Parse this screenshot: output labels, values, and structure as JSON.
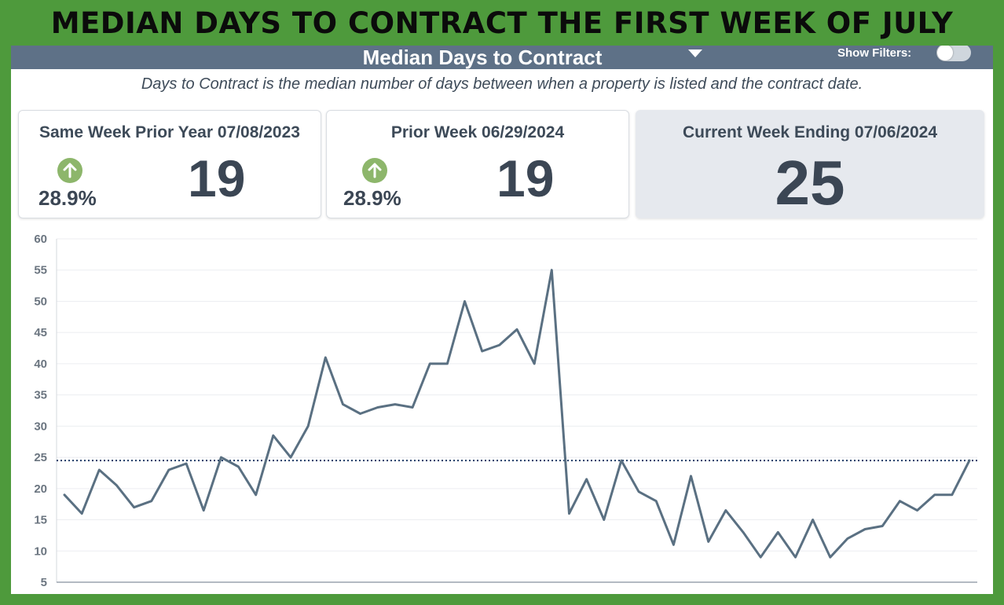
{
  "banner": {
    "title": "MEDIAN DAYS TO CONTRACT THE FIRST WEEK OF JULY"
  },
  "header": {
    "title": "Median Days to Contract",
    "filters_label": "Show Filters:",
    "filters_on": false
  },
  "subtitle": "Days to Contract is the median number of days between when a property is listed and the contract date.",
  "cards": {
    "prior_year": {
      "label": "Same Week Prior Year 07/08/2023",
      "value": "19",
      "change": "28.9%"
    },
    "prior_week": {
      "label": "Prior Week 06/29/2024",
      "value": "19",
      "change": "28.9%"
    },
    "current": {
      "label": "Current Week Ending 07/06/2024",
      "value": "25"
    }
  },
  "colors": {
    "header": "#5e7187",
    "line": "#5a7082",
    "reference": "#1f3a66",
    "up_icon": "#8db66b",
    "banner_bg": "#4e9a3c"
  },
  "chart_data": {
    "type": "line",
    "title": "",
    "xlabel": "",
    "ylabel": "",
    "ylim": [
      5,
      60
    ],
    "yticks": [
      5,
      10,
      15,
      20,
      25,
      30,
      35,
      40,
      45,
      50,
      55,
      60
    ],
    "grid": true,
    "reference_line": 24.5,
    "series": [
      {
        "values": [
          19,
          16,
          23,
          20.5,
          17,
          18,
          23,
          24,
          16.5,
          25,
          23.5,
          19,
          28.5,
          25,
          30,
          41,
          33.5,
          32,
          33,
          33.5,
          33,
          40,
          40,
          50,
          42,
          43,
          45.5,
          40,
          55,
          16,
          21.5,
          15,
          24.5,
          19.5,
          18,
          11,
          22,
          11.5,
          16.5,
          13,
          9,
          13,
          9,
          15,
          9,
          12,
          13.5,
          14,
          18,
          16.5,
          19,
          19,
          24.5
        ]
      }
    ]
  }
}
